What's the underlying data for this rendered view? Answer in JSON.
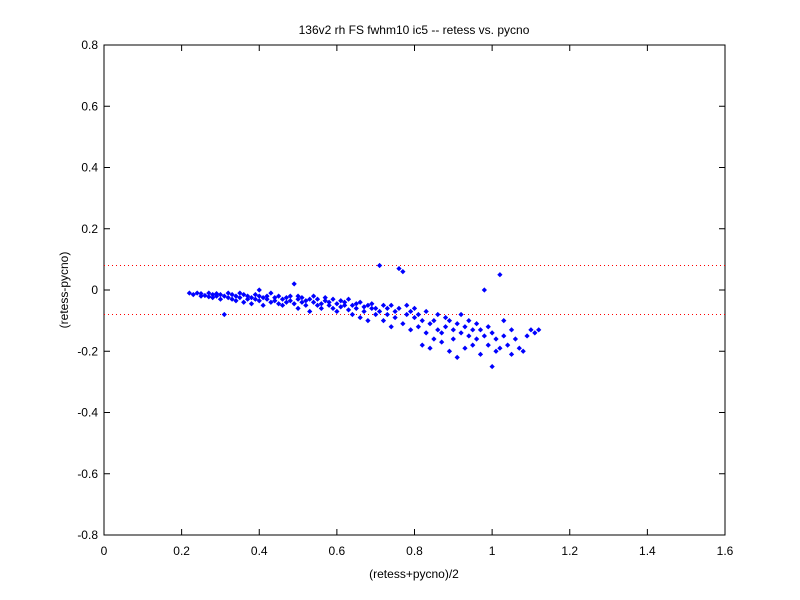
{
  "chart_data": {
    "type": "scatter",
    "title": "136v2 rh FS fwhm10 ic5 -- retess vs. pycno",
    "xlabel": "(retess+pycno)/2",
    "ylabel": "(retess-pycno)",
    "xlim": [
      0,
      1.6
    ],
    "ylim": [
      -0.8,
      0.8
    ],
    "xticks": [
      0,
      0.2,
      0.4,
      0.6,
      0.8,
      1,
      1.2,
      1.4,
      1.6
    ],
    "xtick_labels": [
      "0",
      "0.2",
      "0.4",
      "0.6",
      "0.8",
      "1",
      "1.2",
      "1.4",
      "1.6"
    ],
    "yticks": [
      -0.8,
      -0.6,
      -0.4,
      -0.2,
      0,
      0.2,
      0.4,
      0.6,
      0.8
    ],
    "ytick_labels": [
      "-0.8",
      "-0.6",
      "-0.4",
      "-0.2",
      "0",
      "0.2",
      "0.4",
      "0.6",
      "0.8"
    ],
    "grid": false,
    "legend": "none",
    "colors": {
      "points": "#0000ff",
      "reference_lines": "#ff0000",
      "axes": "#000000"
    },
    "reference_lines": [
      0.08,
      -0.08
    ],
    "points": [
      [
        0.22,
        -0.01
      ],
      [
        0.23,
        -0.015
      ],
      [
        0.24,
        -0.01
      ],
      [
        0.25,
        -0.02
      ],
      [
        0.25,
        -0.012
      ],
      [
        0.26,
        -0.018
      ],
      [
        0.27,
        -0.022
      ],
      [
        0.27,
        -0.01
      ],
      [
        0.28,
        -0.015
      ],
      [
        0.28,
        -0.025
      ],
      [
        0.29,
        -0.012
      ],
      [
        0.29,
        -0.02
      ],
      [
        0.3,
        -0.03
      ],
      [
        0.3,
        -0.015
      ],
      [
        0.31,
        -0.08
      ],
      [
        0.31,
        -0.02
      ],
      [
        0.32,
        -0.025
      ],
      [
        0.32,
        -0.01
      ],
      [
        0.33,
        -0.03
      ],
      [
        0.33,
        -0.015
      ],
      [
        0.34,
        -0.02
      ],
      [
        0.34,
        -0.035
      ],
      [
        0.35,
        -0.01
      ],
      [
        0.35,
        -0.025
      ],
      [
        0.36,
        -0.04
      ],
      [
        0.36,
        -0.015
      ],
      [
        0.37,
        -0.02
      ],
      [
        0.37,
        -0.03
      ],
      [
        0.38,
        -0.025
      ],
      [
        0.38,
        -0.045
      ],
      [
        0.39,
        -0.015
      ],
      [
        0.39,
        -0.03
      ],
      [
        0.4,
        -0.02
      ],
      [
        0.4,
        -0.035
      ],
      [
        0.4,
        0.0
      ],
      [
        0.41,
        -0.025
      ],
      [
        0.41,
        -0.05
      ],
      [
        0.42,
        -0.02
      ],
      [
        0.42,
        -0.03
      ],
      [
        0.43,
        -0.04
      ],
      [
        0.43,
        -0.01
      ],
      [
        0.44,
        -0.025
      ],
      [
        0.44,
        -0.035
      ],
      [
        0.45,
        -0.045
      ],
      [
        0.45,
        -0.02
      ],
      [
        0.46,
        -0.03
      ],
      [
        0.46,
        -0.05
      ],
      [
        0.47,
        -0.025
      ],
      [
        0.47,
        -0.04
      ],
      [
        0.48,
        -0.035
      ],
      [
        0.48,
        -0.02
      ],
      [
        0.49,
        0.02
      ],
      [
        0.49,
        -0.045
      ],
      [
        0.5,
        -0.03
      ],
      [
        0.5,
        -0.06
      ],
      [
        0.5,
        -0.02
      ],
      [
        0.51,
        -0.04
      ],
      [
        0.51,
        -0.025
      ],
      [
        0.52,
        -0.05
      ],
      [
        0.52,
        -0.035
      ],
      [
        0.53,
        -0.03
      ],
      [
        0.53,
        -0.07
      ],
      [
        0.54,
        -0.04
      ],
      [
        0.54,
        -0.02
      ],
      [
        0.55,
        -0.05
      ],
      [
        0.55,
        -0.03
      ],
      [
        0.56,
        -0.045
      ],
      [
        0.56,
        -0.06
      ],
      [
        0.57,
        -0.035
      ],
      [
        0.57,
        -0.025
      ],
      [
        0.58,
        -0.05
      ],
      [
        0.58,
        -0.04
      ],
      [
        0.59,
        -0.06
      ],
      [
        0.59,
        -0.03
      ],
      [
        0.6,
        -0.045
      ],
      [
        0.6,
        -0.07
      ],
      [
        0.61,
        -0.035
      ],
      [
        0.61,
        -0.055
      ],
      [
        0.62,
        -0.05
      ],
      [
        0.62,
        -0.04
      ],
      [
        0.63,
        -0.065
      ],
      [
        0.63,
        -0.03
      ],
      [
        0.64,
        -0.05
      ],
      [
        0.64,
        -0.08
      ],
      [
        0.65,
        -0.045
      ],
      [
        0.65,
        -0.06
      ],
      [
        0.66,
        -0.04
      ],
      [
        0.66,
        -0.09
      ],
      [
        0.67,
        -0.055
      ],
      [
        0.67,
        -0.07
      ],
      [
        0.68,
        -0.05
      ],
      [
        0.68,
        -0.1
      ],
      [
        0.69,
        -0.06
      ],
      [
        0.69,
        -0.045
      ],
      [
        0.7,
        -0.08
      ],
      [
        0.7,
        -0.06
      ],
      [
        0.71,
        -0.07
      ],
      [
        0.71,
        0.08
      ],
      [
        0.72,
        -0.05
      ],
      [
        0.72,
        -0.1
      ],
      [
        0.73,
        -0.06
      ],
      [
        0.73,
        -0.08
      ],
      [
        0.74,
        -0.12
      ],
      [
        0.74,
        -0.05
      ],
      [
        0.75,
        -0.07
      ],
      [
        0.75,
        -0.09
      ],
      [
        0.76,
        0.07
      ],
      [
        0.76,
        -0.06
      ],
      [
        0.77,
        -0.11
      ],
      [
        0.77,
        0.06
      ],
      [
        0.78,
        -0.08
      ],
      [
        0.78,
        -0.05
      ],
      [
        0.79,
        -0.13
      ],
      [
        0.79,
        -0.07
      ],
      [
        0.8,
        -0.09
      ],
      [
        0.8,
        -0.06
      ],
      [
        0.81,
        -0.12
      ],
      [
        0.81,
        -0.08
      ],
      [
        0.82,
        -0.1
      ],
      [
        0.82,
        -0.18
      ],
      [
        0.83,
        -0.14
      ],
      [
        0.83,
        -0.07
      ],
      [
        0.84,
        -0.19
      ],
      [
        0.84,
        -0.11
      ],
      [
        0.85,
        -0.1
      ],
      [
        0.85,
        -0.16
      ],
      [
        0.86,
        -0.13
      ],
      [
        0.86,
        -0.08
      ],
      [
        0.87,
        -0.14
      ],
      [
        0.87,
        -0.17
      ],
      [
        0.88,
        -0.09
      ],
      [
        0.88,
        -0.12
      ],
      [
        0.89,
        -0.2
      ],
      [
        0.89,
        -0.1
      ],
      [
        0.9,
        -0.13
      ],
      [
        0.9,
        -0.16
      ],
      [
        0.91,
        -0.11
      ],
      [
        0.91,
        -0.22
      ],
      [
        0.92,
        -0.14
      ],
      [
        0.92,
        -0.08
      ],
      [
        0.93,
        -0.19
      ],
      [
        0.93,
        -0.12
      ],
      [
        0.94,
        -0.15
      ],
      [
        0.94,
        -0.1
      ],
      [
        0.95,
        -0.13
      ],
      [
        0.95,
        -0.18
      ],
      [
        0.96,
        -0.11
      ],
      [
        0.96,
        -0.16
      ],
      [
        0.97,
        -0.13
      ],
      [
        0.97,
        -0.21
      ],
      [
        0.98,
        -0.15
      ],
      [
        0.98,
        0.0
      ],
      [
        0.99,
        -0.18
      ],
      [
        0.99,
        -0.12
      ],
      [
        1.0,
        -0.14
      ],
      [
        1.0,
        -0.25
      ],
      [
        1.01,
        -0.2
      ],
      [
        1.01,
        -0.16
      ],
      [
        1.02,
        0.05
      ],
      [
        1.02,
        -0.19
      ],
      [
        1.03,
        -0.15
      ],
      [
        1.03,
        -0.1
      ],
      [
        1.04,
        -0.18
      ],
      [
        1.05,
        -0.13
      ],
      [
        1.05,
        -0.21
      ],
      [
        1.06,
        -0.16
      ],
      [
        1.07,
        -0.19
      ],
      [
        1.08,
        -0.2
      ],
      [
        1.09,
        -0.15
      ],
      [
        1.1,
        -0.13
      ],
      [
        1.11,
        -0.14
      ],
      [
        1.12,
        -0.13
      ]
    ]
  }
}
